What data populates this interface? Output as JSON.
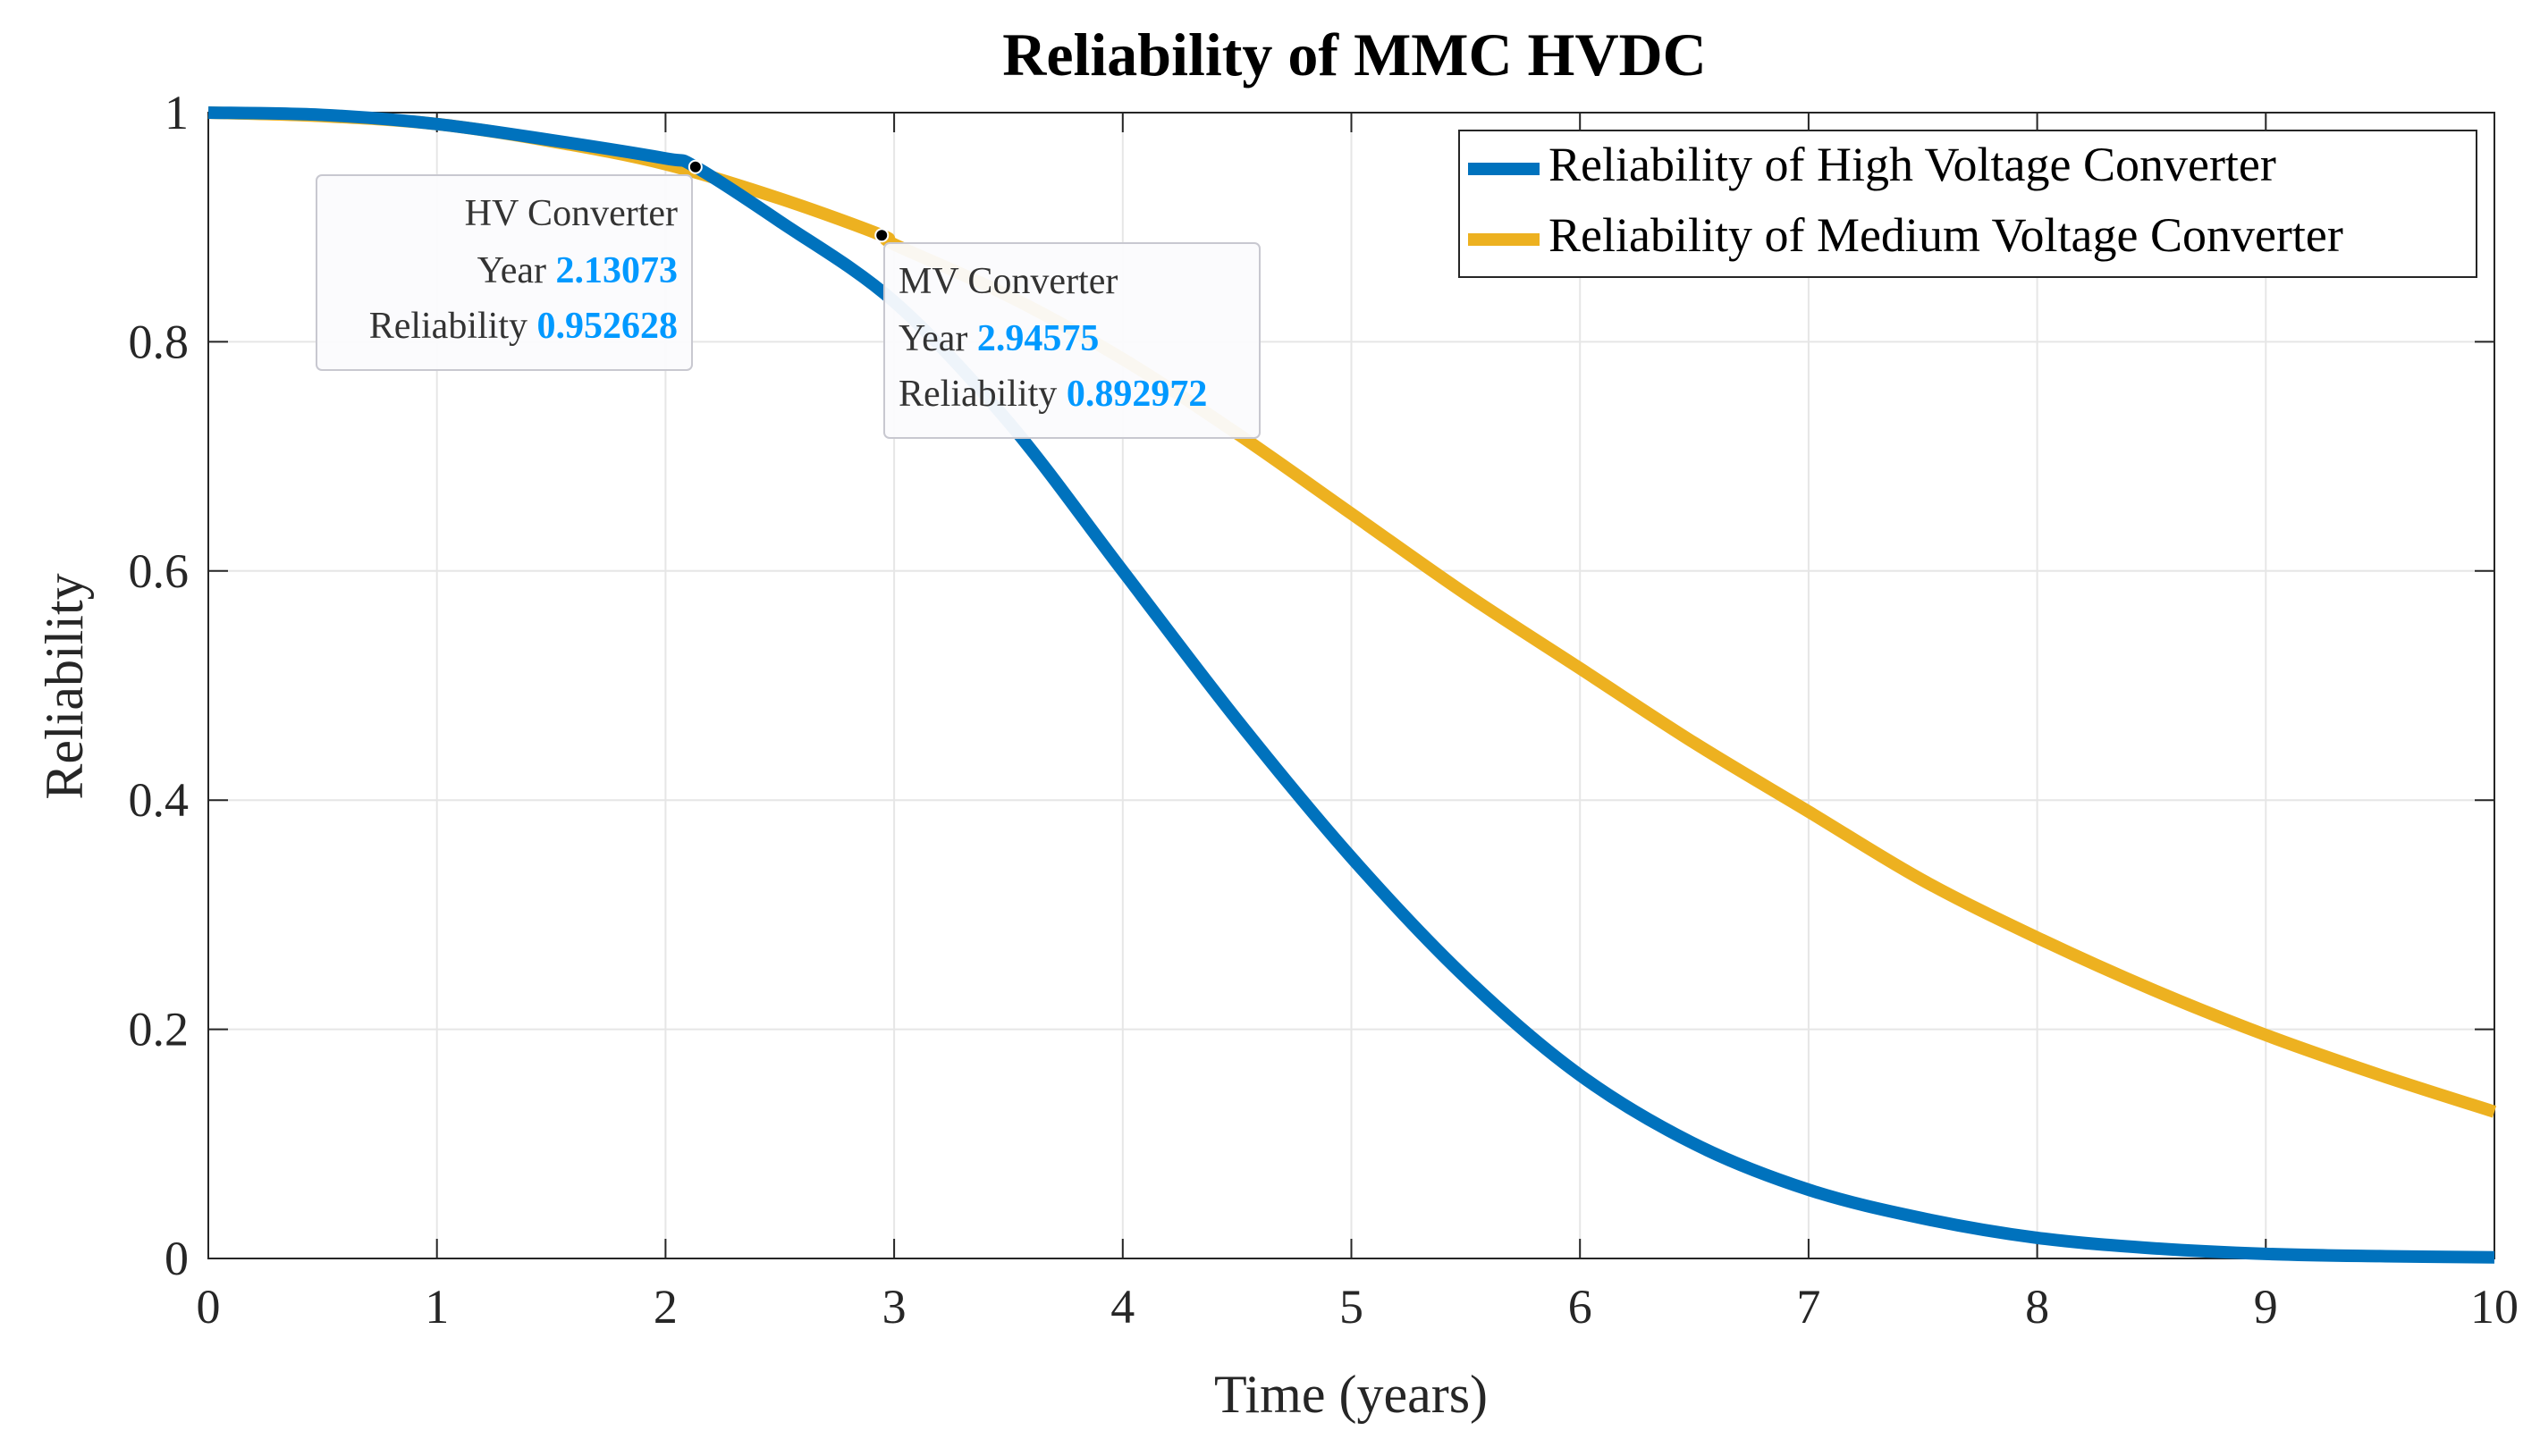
{
  "chart_data": {
    "type": "line",
    "title": "Reliability of MMC HVDC",
    "xlabel": "Time (years)",
    "ylabel": "Reliability",
    "xlim": [
      0,
      10
    ],
    "ylim": [
      0,
      1
    ],
    "x_ticks": [
      "0",
      "1",
      "2",
      "3",
      "4",
      "5",
      "6",
      "7",
      "8",
      "9",
      "10"
    ],
    "y_ticks": [
      "0",
      "0.2",
      "0.4",
      "0.6",
      "0.8",
      "1"
    ],
    "grid": true,
    "legend_position": "top-right",
    "series": [
      {
        "name": "Reliability of High Voltage Converter",
        "color": "#0072bd",
        "x": [
          0,
          0.5,
          1,
          1.5,
          2,
          2.13073,
          2.5,
          3,
          3.5,
          4,
          4.5,
          5,
          5.5,
          6,
          6.5,
          7,
          7.5,
          8,
          8.5,
          9,
          9.5,
          10
        ],
        "y": [
          1.0,
          0.998,
          0.99,
          0.976,
          0.96,
          0.952628,
          0.905,
          0.835,
          0.73,
          0.6,
          0.47,
          0.35,
          0.245,
          0.16,
          0.1,
          0.06,
          0.035,
          0.018,
          0.009,
          0.004,
          0.002,
          0.001
        ]
      },
      {
        "name": "Reliability of Medium Voltage Converter",
        "color": "#edb120",
        "x": [
          0,
          0.5,
          1,
          1.5,
          2,
          2.5,
          2.94575,
          3,
          3.5,
          4,
          4.5,
          5,
          5.5,
          6,
          6.5,
          7,
          7.5,
          8,
          8.5,
          9,
          9.5,
          10
        ],
        "y": [
          1.0,
          0.997,
          0.99,
          0.975,
          0.955,
          0.925,
          0.892972,
          0.885,
          0.84,
          0.785,
          0.72,
          0.65,
          0.58,
          0.515,
          0.45,
          0.39,
          0.33,
          0.28,
          0.235,
          0.195,
          0.16,
          0.128
        ]
      }
    ],
    "annotations": [
      {
        "series": "HV",
        "x": 2.13073,
        "y": 0.952628,
        "label": "HV Converter",
        "x_label": "Year",
        "x_text": "2.13073",
        "y_label": "Reliability",
        "y_text": "0.952628"
      },
      {
        "series": "MV",
        "x": 2.94575,
        "y": 0.892972,
        "label": "MV Converter",
        "x_label": "Year",
        "x_text": "2.94575",
        "y_label": "Reliability",
        "y_text": "0.892972"
      }
    ]
  }
}
